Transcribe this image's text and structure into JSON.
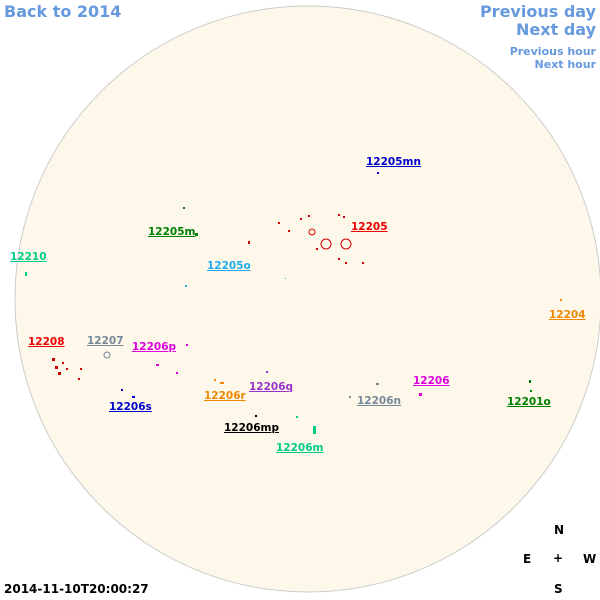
{
  "navigation": {
    "back": "Back to 2014",
    "previous_day": "Previous day",
    "next_day": "Next day",
    "previous_hour": "Previous hour",
    "next_hour": "Next hour"
  },
  "regions": [
    {
      "label": "12205mn",
      "color": "#0000cc"
    },
    {
      "label": "12205",
      "color": "#ee0000"
    },
    {
      "label": "12205m",
      "color": "#008000"
    },
    {
      "label": "12210",
      "color": "#00cc88"
    },
    {
      "label": "12205o",
      "color": "#22aaee"
    },
    {
      "label": "12204",
      "color": "#ee8800"
    },
    {
      "label": "12208",
      "color": "#ee0000"
    },
    {
      "label": "12207",
      "color": "#778899"
    },
    {
      "label": "12206p",
      "color": "#dd00dd"
    },
    {
      "label": "12206",
      "color": "#dd00dd"
    },
    {
      "label": "12206q",
      "color": "#9933cc"
    },
    {
      "label": "12206r",
      "color": "#ee8800"
    },
    {
      "label": "12206n",
      "color": "#778899"
    },
    {
      "label": "12201o",
      "color": "#008000"
    },
    {
      "label": "12206s",
      "color": "#0000cc"
    },
    {
      "label": "12206mp",
      "color": "#000000"
    },
    {
      "label": "12206m",
      "color": "#00cc88"
    }
  ],
  "timestamp": "2014-11-10T20:00:27",
  "compass": {
    "north": "N",
    "east": "E",
    "center": "+",
    "west": "W",
    "south": "S"
  }
}
